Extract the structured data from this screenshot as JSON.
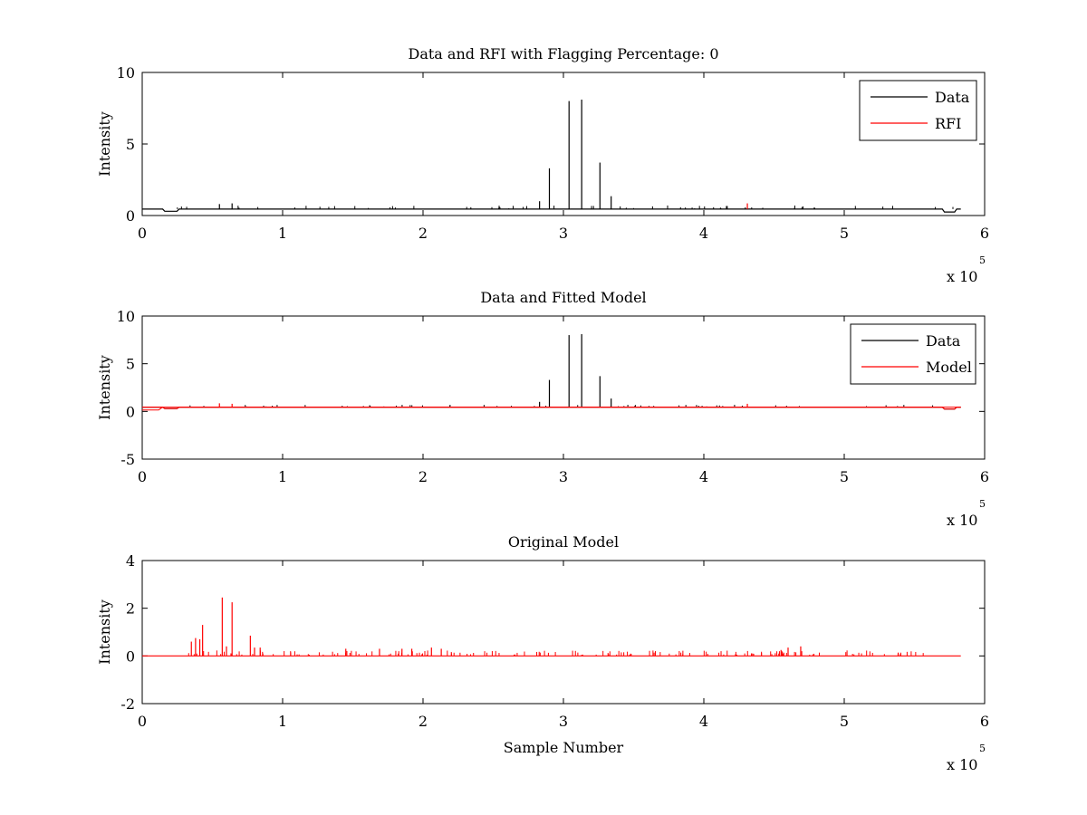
{
  "colors": {
    "data": "#000000",
    "rfi": "#ff0000",
    "model": "#ff0000",
    "axes": "#000000",
    "background": "#ffffff"
  },
  "chart_data": [
    {
      "type": "line",
      "title": "Data and RFI with Flagging Percentage: 0",
      "xlabel": "",
      "ylabel": "Intensity",
      "xlim": [
        0,
        600000
      ],
      "ylim": [
        0,
        10
      ],
      "xticks": [
        "0",
        "1",
        "2",
        "3",
        "4",
        "5",
        "6"
      ],
      "yticks": [
        "0",
        "5",
        "10"
      ],
      "x_multiplier": "x 10",
      "x_multiplier_exp": "5",
      "legend": {
        "position": "top-right",
        "entries": [
          "Data",
          "RFI"
        ]
      },
      "baseline": 0.45,
      "series": [
        {
          "name": "Data",
          "color": "#000000",
          "spikes": [
            {
              "x": 55000,
              "y": 0.8
            },
            {
              "x": 64000,
              "y": 0.85
            },
            {
              "x": 283000,
              "y": 1.0
            },
            {
              "x": 290000,
              "y": 3.3
            },
            {
              "x": 304000,
              "y": 8.0
            },
            {
              "x": 313000,
              "y": 8.1
            },
            {
              "x": 326000,
              "y": 3.7
            },
            {
              "x": 334000,
              "y": 1.35
            }
          ]
        },
        {
          "name": "RFI",
          "color": "#ff0000",
          "spikes": [
            {
              "x": 431000,
              "y": 0.85
            }
          ]
        }
      ]
    },
    {
      "type": "line",
      "title": "Data and Fitted Model",
      "xlabel": "",
      "ylabel": "Intensity",
      "xlim": [
        0,
        600000
      ],
      "ylim": [
        -5,
        10
      ],
      "xticks": [
        "0",
        "1",
        "2",
        "3",
        "4",
        "5",
        "6"
      ],
      "yticks": [
        "-5",
        "0",
        "5",
        "10"
      ],
      "x_multiplier": "x 10",
      "x_multiplier_exp": "5",
      "legend": {
        "position": "top-right",
        "entries": [
          "Data",
          "Model"
        ]
      },
      "baseline": 0.45,
      "series": [
        {
          "name": "Data",
          "color": "#000000",
          "spikes": [
            {
              "x": 283000,
              "y": 1.0
            },
            {
              "x": 290000,
              "y": 3.3
            },
            {
              "x": 304000,
              "y": 8.0
            },
            {
              "x": 313000,
              "y": 8.1
            },
            {
              "x": 326000,
              "y": 3.7
            },
            {
              "x": 334000,
              "y": 1.35
            }
          ]
        },
        {
          "name": "Model",
          "color": "#ff0000",
          "spikes": [
            {
              "x": 55000,
              "y": 0.85
            },
            {
              "x": 64000,
              "y": 0.8
            },
            {
              "x": 431000,
              "y": 0.8
            }
          ]
        }
      ]
    },
    {
      "type": "line",
      "title": "Original Model",
      "xlabel": "Sample Number",
      "ylabel": "Intensity",
      "xlim": [
        0,
        600000
      ],
      "ylim": [
        -2,
        4
      ],
      "xticks": [
        "0",
        "1",
        "2",
        "3",
        "4",
        "5",
        "6"
      ],
      "yticks": [
        "-2",
        "0",
        "2",
        "4"
      ],
      "x_multiplier": "x 10",
      "x_multiplier_exp": "5",
      "baseline": 0.0,
      "series": [
        {
          "color": "#ff0000",
          "spikes": [
            {
              "x": 35000,
              "y": 0.6
            },
            {
              "x": 38000,
              "y": 0.75
            },
            {
              "x": 41000,
              "y": 0.7
            },
            {
              "x": 43000,
              "y": 1.3
            },
            {
              "x": 57000,
              "y": 2.45
            },
            {
              "x": 60000,
              "y": 0.4
            },
            {
              "x": 64000,
              "y": 2.25
            },
            {
              "x": 77000,
              "y": 0.85
            },
            {
              "x": 80000,
              "y": 0.35
            },
            {
              "x": 84000,
              "y": 0.35
            },
            {
              "x": 145000,
              "y": 0.3
            },
            {
              "x": 169000,
              "y": 0.3
            },
            {
              "x": 185000,
              "y": 0.3
            },
            {
              "x": 192000,
              "y": 0.3
            },
            {
              "x": 206000,
              "y": 0.35
            },
            {
              "x": 213000,
              "y": 0.3
            },
            {
              "x": 455000,
              "y": 0.25
            },
            {
              "x": 460000,
              "y": 0.35
            },
            {
              "x": 469000,
              "y": 0.4
            }
          ]
        }
      ]
    }
  ]
}
